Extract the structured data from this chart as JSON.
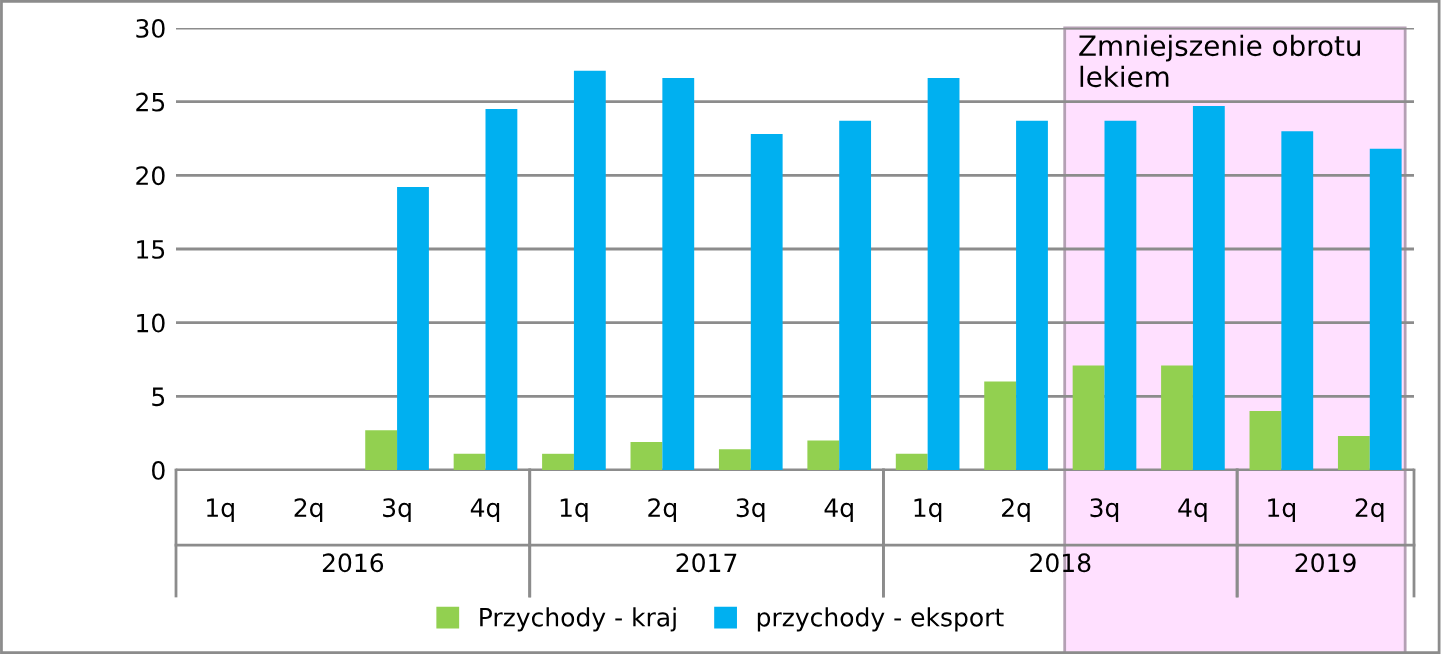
{
  "chart_data": {
    "type": "bar",
    "categories": [
      "1q",
      "2q",
      "3q",
      "4q",
      "1q",
      "2q",
      "3q",
      "4q",
      "1q",
      "2q",
      "3q",
      "4q",
      "1q",
      "2q"
    ],
    "series": [
      {
        "name": "Przychody - kraj",
        "color": "#92d050",
        "values": [
          0,
          0,
          2.7,
          1.1,
          1.1,
          1.9,
          1.4,
          2.0,
          1.1,
          6.0,
          7.1,
          7.1,
          4.0,
          2.3
        ]
      },
      {
        "name": "przychody - eksport",
        "color": "#00b0f0",
        "values": [
          0,
          0,
          19.2,
          24.5,
          27.1,
          26.6,
          22.8,
          23.7,
          26.6,
          23.7,
          23.7,
          24.7,
          23.0,
          21.8
        ]
      }
    ],
    "annotations": [
      "2016",
      "2017",
      "2018",
      "2019",
      "Zmniejszenie obrotu lekiem"
    ],
    "ylim": [
      0,
      30
    ],
    "yticks": [
      0,
      5,
      10,
      15,
      20,
      25,
      30
    ],
    "grid": "y",
    "legend": "bottom"
  }
}
